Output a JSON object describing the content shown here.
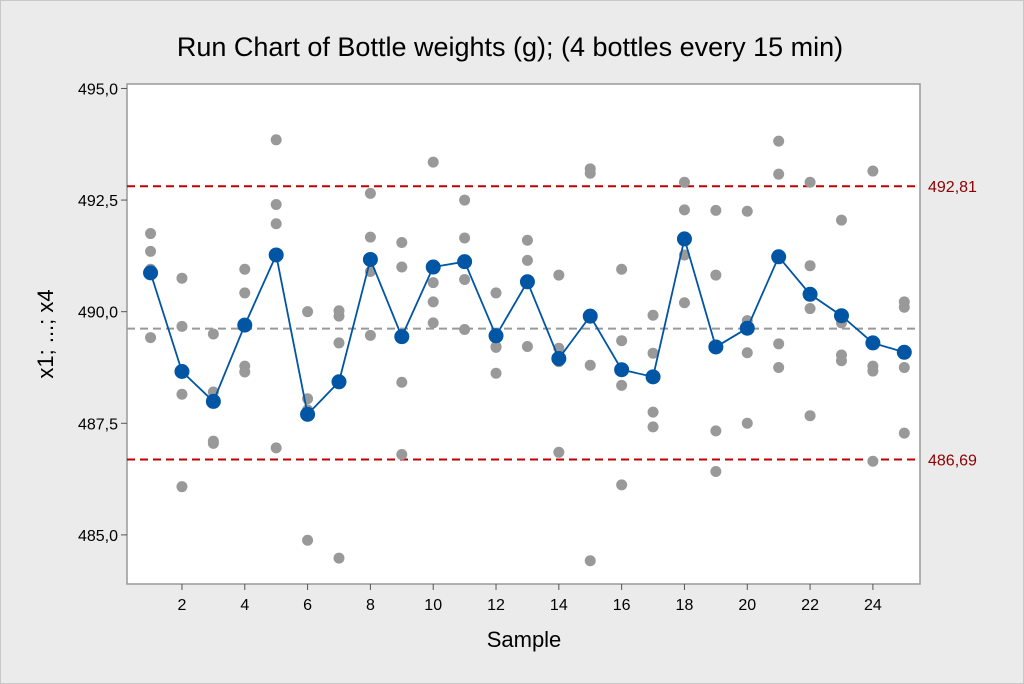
{
  "chart_data": {
    "type": "scatter",
    "title": "Run Chart of Bottle weights (g); (4 bottles every 15 min)",
    "xlabel": "Sample",
    "ylabel": "x1; ...; x4",
    "xlim": [
      0.25,
      25.5
    ],
    "ylim": [
      483.9,
      495.1
    ],
    "x_ticks": [
      2,
      4,
      6,
      8,
      10,
      12,
      14,
      16,
      18,
      20,
      22,
      24
    ],
    "y_ticks": [
      485.0,
      487.5,
      490.0,
      492.5,
      495.0
    ],
    "y_tick_labels": [
      "485,0",
      "487,5",
      "490,0",
      "492,5",
      "495,0"
    ],
    "grid": false,
    "center_line": 489.62,
    "limits": [
      {
        "name": "upper-limit",
        "value": 492.81,
        "label": "492,81"
      },
      {
        "name": "lower-limit",
        "value": 486.69,
        "label": "486,69"
      }
    ],
    "observations": [
      {
        "sample": 1,
        "values": [
          491.75,
          491.35,
          490.95,
          489.42
        ]
      },
      {
        "sample": 2,
        "values": [
          490.75,
          489.67,
          488.15,
          486.08
        ]
      },
      {
        "sample": 3,
        "values": [
          489.5,
          488.2,
          487.1,
          487.05
        ]
      },
      {
        "sample": 4,
        "values": [
          490.95,
          490.42,
          488.78,
          488.65
        ]
      },
      {
        "sample": 5,
        "values": [
          493.85,
          492.4,
          491.97,
          486.95
        ]
      },
      {
        "sample": 6,
        "values": [
          490.0,
          488.05,
          487.8,
          484.88
        ]
      },
      {
        "sample": 7,
        "values": [
          490.02,
          489.9,
          489.3,
          484.48
        ]
      },
      {
        "sample": 8,
        "values": [
          492.65,
          491.67,
          490.9,
          489.47
        ]
      },
      {
        "sample": 9,
        "values": [
          491.55,
          491.0,
          488.42,
          486.8
        ]
      },
      {
        "sample": 10,
        "values": [
          493.35,
          490.65,
          490.22,
          489.75
        ]
      },
      {
        "sample": 11,
        "values": [
          492.5,
          491.65,
          490.72,
          489.6
        ]
      },
      {
        "sample": 12,
        "values": [
          490.42,
          489.22,
          489.2,
          488.62
        ]
      },
      {
        "sample": 13,
        "values": [
          491.6,
          491.15,
          490.7,
          489.22
        ]
      },
      {
        "sample": 14,
        "values": [
          490.82,
          489.18,
          488.88,
          486.85
        ]
      },
      {
        "sample": 15,
        "values": [
          493.2,
          493.1,
          488.8,
          484.42
        ]
      },
      {
        "sample": 16,
        "values": [
          490.95,
          489.35,
          488.35,
          486.12
        ]
      },
      {
        "sample": 17,
        "values": [
          489.92,
          489.07,
          487.75,
          487.42
        ]
      },
      {
        "sample": 18,
        "values": [
          492.9,
          492.28,
          491.27,
          490.2
        ]
      },
      {
        "sample": 19,
        "values": [
          492.27,
          490.82,
          487.33,
          486.42
        ]
      },
      {
        "sample": 20,
        "values": [
          492.25,
          489.8,
          489.08,
          487.5
        ]
      },
      {
        "sample": 21,
        "values": [
          493.82,
          493.08,
          489.28,
          488.75
        ]
      },
      {
        "sample": 22,
        "values": [
          492.9,
          491.03,
          490.07,
          487.67
        ]
      },
      {
        "sample": 23,
        "values": [
          492.05,
          489.75,
          489.03,
          488.9
        ]
      },
      {
        "sample": 24,
        "values": [
          493.15,
          488.78,
          488.67,
          486.65
        ]
      },
      {
        "sample": 25,
        "values": [
          490.22,
          490.1,
          488.75,
          487.28
        ]
      }
    ],
    "series": [
      {
        "x": [
          1,
          2,
          3,
          4,
          5,
          6,
          7,
          8,
          9,
          10,
          11,
          12,
          13,
          14,
          15,
          16,
          17,
          18,
          19,
          20,
          21,
          22,
          23,
          24,
          25
        ],
        "values": [
          490.87,
          488.66,
          487.99,
          489.7,
          491.27,
          487.7,
          488.43,
          491.17,
          489.44,
          491.0,
          491.12,
          489.46,
          490.67,
          488.95,
          489.9,
          488.7,
          488.54,
          491.63,
          489.21,
          489.63,
          491.23,
          490.39,
          489.91,
          489.3,
          489.09
        ]
      }
    ],
    "colors": {
      "observation": "#999999",
      "median": "#0055a4",
      "limit": "#c00000",
      "limit_label": "#8b0000",
      "center": "#999999"
    }
  }
}
